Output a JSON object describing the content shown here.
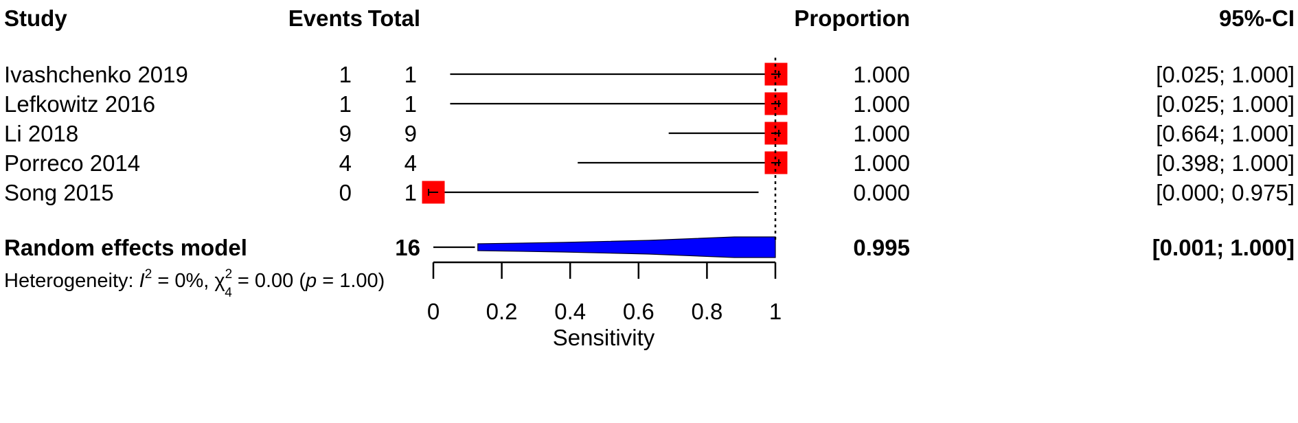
{
  "headers": {
    "study": "Study",
    "events": "Events",
    "total": "Total",
    "proportion": "Proportion",
    "ci": "95%-CI"
  },
  "pooled": {
    "label": "Random effects model",
    "total": "16",
    "proportion": "0.995",
    "ci": "[0.001; 1.000]"
  },
  "heterogeneity": {
    "prefix": "Heterogeneity: ",
    "i2_symbol": "I",
    "i2_sup": "2",
    "i2_value": " = 0%, ",
    "chi_symbol": "χ",
    "chi_sup": "2",
    "chi_sub": "4",
    "chi_value": " = 0.00 (",
    "p_symbol": "p",
    "p_value": " = 1.00)"
  },
  "colors": {
    "study_square": "#ff0000",
    "pooled_diamond": "#0000ff",
    "line": "#000000"
  },
  "chart_data": {
    "type": "forest",
    "xlabel": "Sensitivity",
    "xlim": [
      0,
      1
    ],
    "xticks": [
      0,
      0.2,
      0.4,
      0.6,
      0.8,
      1
    ],
    "xtick_labels": [
      "0",
      "0.2",
      "0.4",
      "0.6",
      "0.8",
      "1"
    ],
    "reference_line": 1,
    "studies": [
      {
        "study": "Ivashchenko 2019",
        "events": "1",
        "total": "1",
        "proportion": 1.0,
        "lower": 0.025,
        "upper": 1.0,
        "proportion_text": "1.000",
        "ci_text": "[0.025; 1.000]"
      },
      {
        "study": "Lefkowitz 2016",
        "events": "1",
        "total": "1",
        "proportion": 1.0,
        "lower": 0.025,
        "upper": 1.0,
        "proportion_text": "1.000",
        "ci_text": "[0.025; 1.000]"
      },
      {
        "study": "Li 2018",
        "events": "9",
        "total": "9",
        "proportion": 1.0,
        "lower": 0.664,
        "upper": 1.0,
        "proportion_text": "1.000",
        "ci_text": "[0.664; 1.000]"
      },
      {
        "study": "Porreco 2014",
        "events": "4",
        "total": "4",
        "proportion": 1.0,
        "lower": 0.398,
        "upper": 1.0,
        "proportion_text": "1.000",
        "ci_text": "[0.398; 1.000]"
      },
      {
        "study": "Song 2015",
        "events": "0",
        "total": "1",
        "proportion": 0.0,
        "lower": 0.0,
        "upper": 0.975,
        "proportion_text": "0.000",
        "ci_text": "[0.000; 0.975]"
      }
    ],
    "pooled_estimate": {
      "proportion": 0.995,
      "lower": 0.001,
      "upper": 1.0
    }
  }
}
